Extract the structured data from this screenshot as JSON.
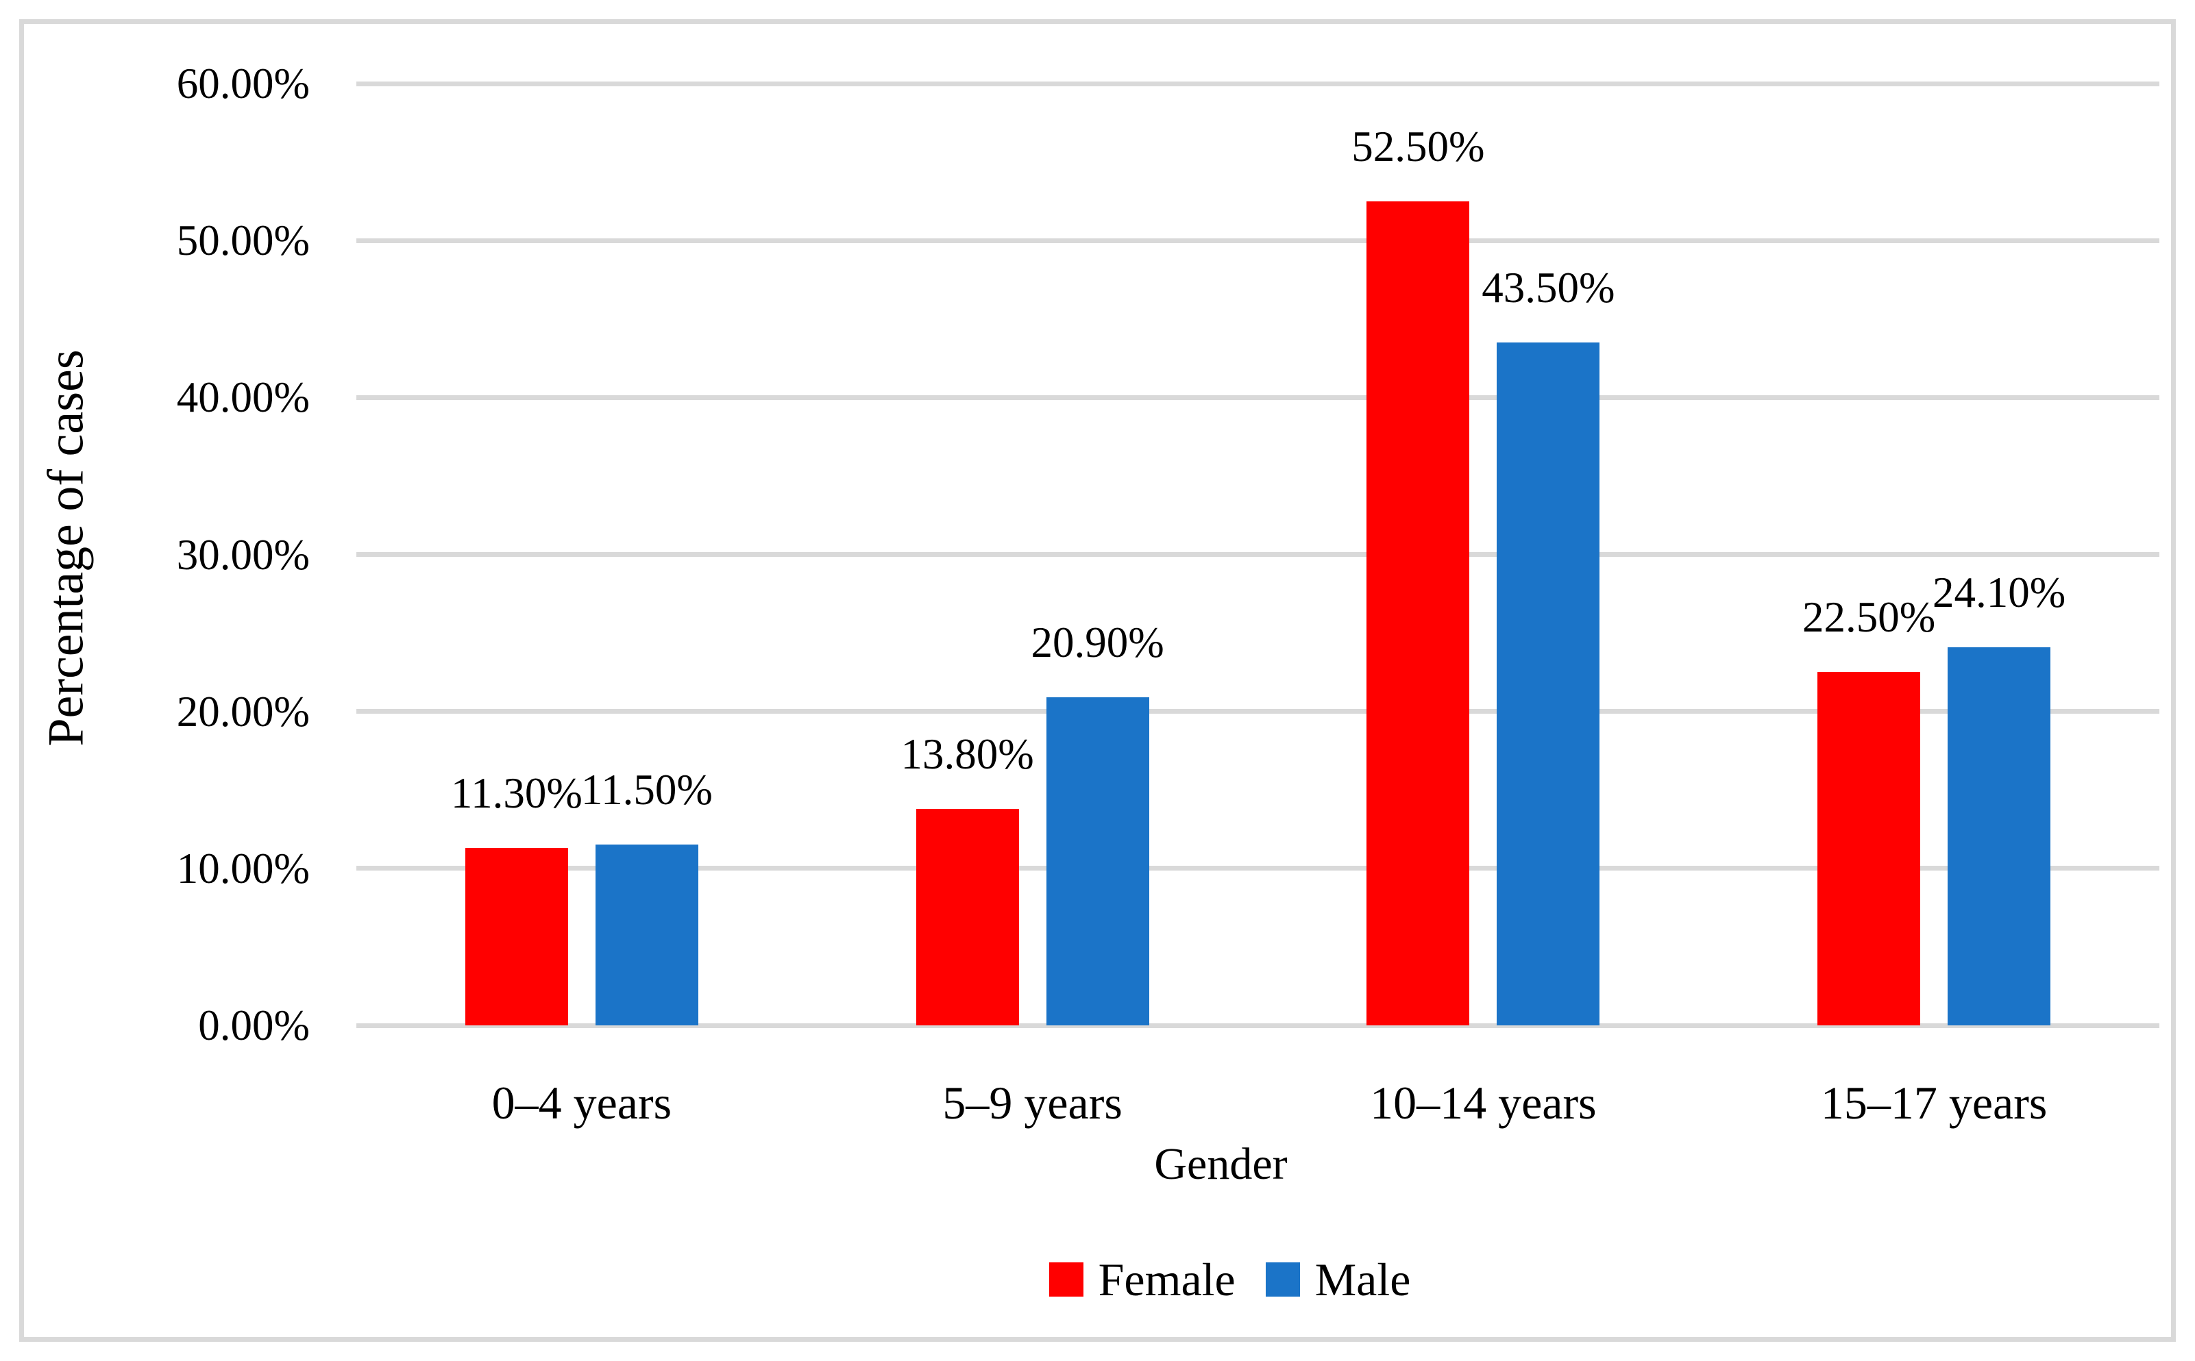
{
  "chart_data": {
    "type": "bar",
    "title": "",
    "categories": [
      "0–4 years",
      "5–9 years",
      "10–14 years",
      "15–17 years"
    ],
    "series": [
      {
        "name": "Female",
        "color": "#FF0000",
        "values": [
          11.3,
          13.8,
          52.5,
          22.5
        ],
        "data_labels": [
          "11.30%",
          "13.80%",
          "52.50%",
          "22.50%"
        ]
      },
      {
        "name": "Male",
        "color": "#1B74C8",
        "values": [
          11.5,
          20.9,
          43.5,
          24.1
        ],
        "data_labels": [
          "11.50%",
          "20.90%",
          "43.50%",
          "24.10%"
        ]
      }
    ],
    "xlabel": "Gender",
    "ylabel": "Percentage of cases",
    "ylim": [
      0,
      60
    ],
    "ytick_step": 10,
    "ytick_labels": [
      "0.00%",
      "10.00%",
      "20.00%",
      "30.00%",
      "40.00%",
      "50.00%",
      "60.00%"
    ],
    "grid": true,
    "legend_position": "bottom",
    "legend_labels": [
      "Female",
      "Male"
    ]
  },
  "colors": {
    "female": "#FF0000",
    "male": "#1B74C8",
    "gridline": "#D9D9D9",
    "frame_border": "#D9D9D9",
    "text": "#000000",
    "background": "#FFFFFF"
  }
}
